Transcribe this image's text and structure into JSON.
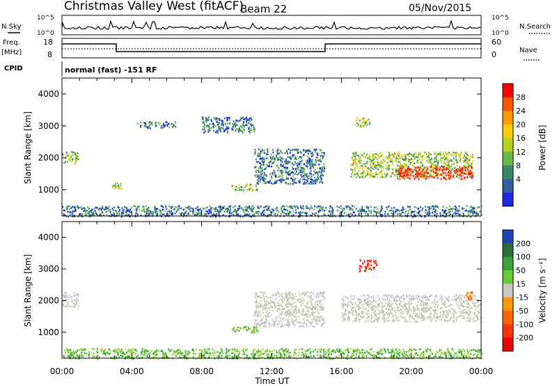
{
  "header": {
    "station": "Christmas Valley West (fitACF)",
    "beam": "Beam 22",
    "date": "05/Nov/2015"
  },
  "top_panels": {
    "noise_sky_label": "N.Sky",
    "noise_search_label": "N.Search",
    "noise_ticks": [
      "10^5",
      "10^0"
    ],
    "freq_label": "Freq.",
    "freq_unit": "[MHz]",
    "freq_ticks": [
      "18",
      "8"
    ],
    "nave_label": "Nave",
    "nave_ticks": [
      "60",
      "0"
    ],
    "cpid_label": "CPID",
    "cpid_text": "normal (fast) -151 RF"
  },
  "chart_data": [
    {
      "type": "heatmap",
      "name": "power",
      "ylabel": "Slant Range [km]",
      "xlabel": "",
      "x_ticks": [
        "00:00",
        "04:00",
        "08:00",
        "12:00",
        "16:00",
        "20:00",
        "00:00"
      ],
      "y_ticks": [
        "1000",
        "2000",
        "3000",
        "4000"
      ],
      "x_range_hours": [
        0,
        24
      ],
      "y_range_km": [
        180,
        4500
      ],
      "colorbar": {
        "label": "Power [dB]",
        "ticks": [
          "28",
          "24",
          "20",
          "16",
          "12",
          "8",
          "4"
        ],
        "colors": [
          "#ff0000",
          "#ff5500",
          "#ff9900",
          "#ffcc00",
          "#b4d21e",
          "#6ab84a",
          "#3a8a6a",
          "#2f5fa8",
          "#1e28e6"
        ]
      },
      "regions": [
        {
          "t0": 0.0,
          "t1": 0.9,
          "r0": 1850,
          "r1": 2250,
          "level": "mid"
        },
        {
          "t0": 4.2,
          "t1": 6.5,
          "r0": 2950,
          "r1": 3150,
          "level": "low"
        },
        {
          "t0": 8.0,
          "t1": 11.0,
          "r0": 2800,
          "r1": 3300,
          "level": "low"
        },
        {
          "t0": 11.0,
          "t1": 15.0,
          "r0": 1200,
          "r1": 2300,
          "level": "low"
        },
        {
          "t0": 2.8,
          "t1": 3.4,
          "r0": 1050,
          "r1": 1250,
          "level": "mid"
        },
        {
          "t0": 9.7,
          "t1": 11.2,
          "r0": 1000,
          "r1": 1200,
          "level": "mid"
        },
        {
          "t0": 16.5,
          "t1": 23.5,
          "r0": 1400,
          "r1": 2200,
          "level": "mid"
        },
        {
          "t0": 19.2,
          "t1": 23.5,
          "r0": 1350,
          "r1": 1750,
          "level": "high"
        },
        {
          "t0": 16.8,
          "t1": 17.6,
          "r0": 3000,
          "r1": 3300,
          "level": "mid"
        },
        {
          "t0": 0.0,
          "t1": 24.0,
          "r0": 180,
          "r1": 520,
          "level": "low"
        }
      ]
    },
    {
      "type": "heatmap",
      "name": "velocity",
      "ylabel": "Slant Range [km]",
      "xlabel": "Time UT",
      "x_ticks": [
        "00:00",
        "04:00",
        "08:00",
        "12:00",
        "16:00",
        "20:00",
        "00:00"
      ],
      "y_ticks": [
        "1000",
        "2000",
        "3000",
        "4000"
      ],
      "x_range_hours": [
        0,
        24
      ],
      "y_range_km": [
        180,
        4500
      ],
      "colorbar": {
        "label": "Velocity [m s⁻¹]",
        "ticks": [
          "200",
          "100",
          "50",
          "15",
          "-15",
          "-50",
          "-100",
          "-200"
        ],
        "colors": [
          "#2244bb",
          "#2a6e3a",
          "#3aa33a",
          "#66cc33",
          "#c8c8c0",
          "#ff9900",
          "#ff6600",
          "#ff3300",
          "#ee0000"
        ]
      },
      "regions": [
        {
          "t0": 0.0,
          "t1": 0.9,
          "r0": 1800,
          "r1": 2300,
          "level": "gray"
        },
        {
          "t0": 16.0,
          "t1": 24.0,
          "r0": 1350,
          "r1": 2200,
          "level": "gray"
        },
        {
          "t0": 11.0,
          "t1": 15.0,
          "r0": 1200,
          "r1": 2300,
          "level": "gray"
        },
        {
          "t0": 17.0,
          "t1": 18.0,
          "r0": 2950,
          "r1": 3300,
          "level": "red"
        },
        {
          "t0": 9.7,
          "t1": 11.2,
          "r0": 1000,
          "r1": 1200,
          "level": "green"
        },
        {
          "t0": 0.0,
          "t1": 24.0,
          "r0": 180,
          "r1": 500,
          "level": "green"
        },
        {
          "t0": 23.1,
          "t1": 23.5,
          "r0": 2050,
          "r1": 2300,
          "level": "orange"
        }
      ]
    }
  ]
}
